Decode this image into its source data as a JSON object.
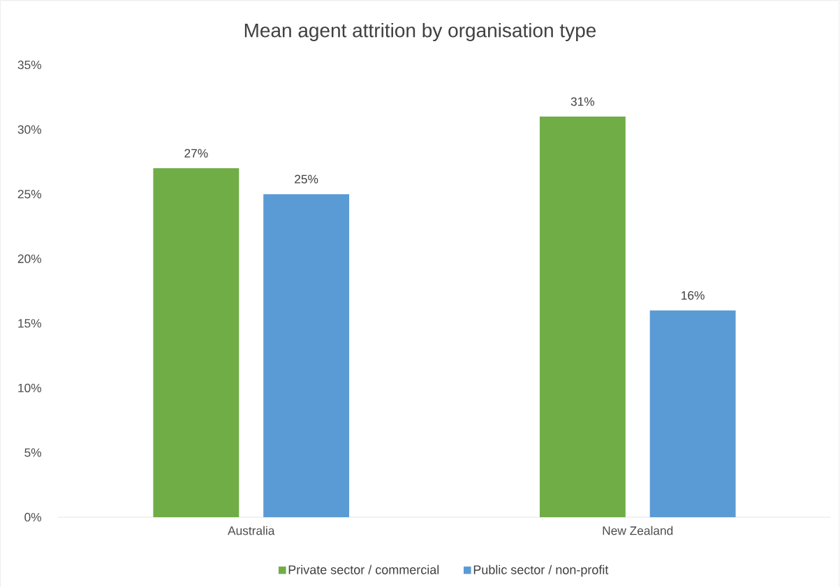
{
  "chart_data": {
    "type": "bar",
    "title": "Mean agent attrition by organisation type",
    "categories": [
      "Australia",
      "New Zealand"
    ],
    "series": [
      {
        "name": "Private sector / commercial",
        "color": "#70ad47",
        "values": [
          27,
          31
        ],
        "value_labels": [
          "27%",
          "31%"
        ]
      },
      {
        "name": "Public sector / non-profit",
        "color": "#5b9bd5",
        "values": [
          25,
          16
        ],
        "value_labels": [
          "25%",
          "16%"
        ]
      }
    ],
    "ylim": [
      0,
      35
    ],
    "yticks": [
      {
        "value": 0,
        "label": "0%"
      },
      {
        "value": 5,
        "label": "5%"
      },
      {
        "value": 10,
        "label": "10%"
      },
      {
        "value": 15,
        "label": "15%"
      },
      {
        "value": 20,
        "label": "20%"
      },
      {
        "value": 25,
        "label": "25%"
      },
      {
        "value": 30,
        "label": "30%"
      },
      {
        "value": 35,
        "label": "35%"
      }
    ],
    "grid": false,
    "legend": "bottom"
  }
}
